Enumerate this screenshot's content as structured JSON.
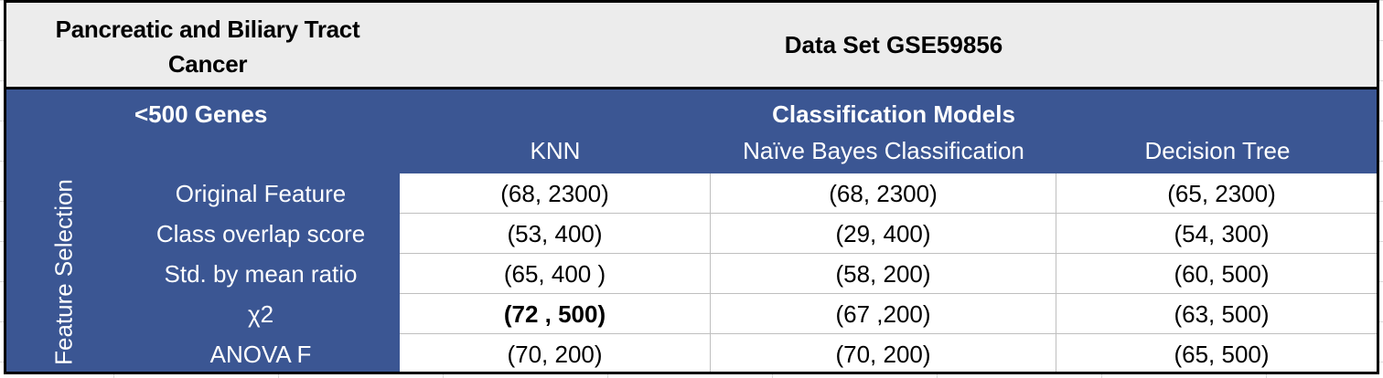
{
  "header": {
    "cancer_line1": "Pancreatic and Biliary Tract",
    "cancer_line2": "Cancer",
    "dataset": "Data Set GSE59856"
  },
  "subheader": {
    "genes": "<500 Genes",
    "models": "Classification Models",
    "feature_selection": "Feature Selection"
  },
  "columns": [
    "KNN",
    "Naïve Bayes Classification",
    "Decision Tree"
  ],
  "rows": [
    {
      "label": "Original Feature",
      "cells": [
        "(68, 2300)",
        "(68, 2300)",
        "(65, 2300)"
      ],
      "bold": [
        false,
        false,
        false
      ]
    },
    {
      "label": "Class overlap score",
      "cells": [
        "(53, 400)",
        "(29, 400)",
        "(54, 300)"
      ],
      "bold": [
        false,
        false,
        false
      ]
    },
    {
      "label": "Std. by mean ratio",
      "cells": [
        "(65, 400 )",
        "(58, 200)",
        "(60, 500)"
      ],
      "bold": [
        false,
        false,
        false
      ]
    },
    {
      "label": "χ2",
      "cells": [
        "(72 , 500)",
        "(67 ,200)",
        "(63, 500)"
      ],
      "bold": [
        true,
        false,
        false
      ]
    },
    {
      "label": "ANOVA F",
      "cells": [
        "(70, 200)",
        "(70, 200)",
        "(65, 500)"
      ],
      "bold": [
        false,
        false,
        false
      ]
    }
  ]
}
